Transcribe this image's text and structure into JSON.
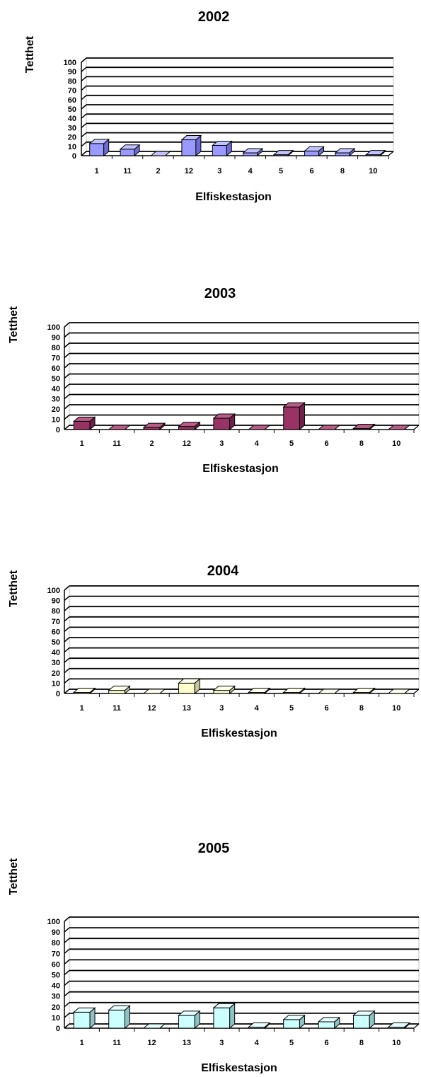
{
  "chart_data": [
    {
      "type": "bar",
      "title": "2002",
      "xlabel": "Elfiskestasjon",
      "ylabel": "Tetthet",
      "ylim": [
        0,
        100
      ],
      "yticks": [
        0,
        10,
        20,
        30,
        40,
        50,
        60,
        70,
        80,
        90,
        100
      ],
      "categories": [
        "1",
        "11",
        "2",
        "12",
        "3",
        "4",
        "5",
        "6",
        "8",
        "10"
      ],
      "values": [
        13,
        7,
        0,
        17,
        11,
        3,
        1,
        5,
        3,
        1
      ],
      "grid": true,
      "colors": {
        "face": "#9999ff",
        "side": "#6b6bd6",
        "top": "#c2c2ff"
      }
    },
    {
      "type": "bar",
      "title": "2003",
      "xlabel": "Elfiskestasjon",
      "ylabel": "Tetthet",
      "ylim": [
        0,
        100
      ],
      "yticks": [
        0,
        10,
        20,
        30,
        40,
        50,
        60,
        70,
        80,
        90,
        100
      ],
      "categories": [
        "1",
        "11",
        "2",
        "12",
        "3",
        "4",
        "5",
        "6",
        "8",
        "10"
      ],
      "values": [
        8,
        0,
        2,
        3,
        11,
        0,
        22,
        0,
        1,
        0
      ],
      "grid": true,
      "colors": {
        "face": "#993366",
        "side": "#6e2249",
        "top": "#b85c88"
      }
    },
    {
      "type": "bar",
      "title": "2004",
      "xlabel": "Elfiskestasjon",
      "ylabel": "Tetthet",
      "ylim": [
        0,
        100
      ],
      "yticks": [
        0,
        10,
        20,
        30,
        40,
        50,
        60,
        70,
        80,
        90,
        100
      ],
      "categories": [
        "1",
        "11",
        "12",
        "13",
        "3",
        "4",
        "5",
        "6",
        "8",
        "10"
      ],
      "values": [
        1,
        3,
        0,
        10,
        3,
        1,
        1,
        0,
        1,
        0
      ],
      "grid": true,
      "colors": {
        "face": "#ffffcc",
        "side": "#c8c89a",
        "top": "#fffff0"
      }
    },
    {
      "type": "bar",
      "title": "2005",
      "xlabel": "Elfiskestasjon",
      "ylabel": "Tetthet",
      "ylim": [
        0,
        100
      ],
      "yticks": [
        0,
        10,
        20,
        30,
        40,
        50,
        60,
        70,
        80,
        90,
        100
      ],
      "categories": [
        "1",
        "11",
        "12",
        "13",
        "3",
        "4",
        "5",
        "6",
        "8",
        "10"
      ],
      "values": [
        15,
        17,
        0,
        12,
        19,
        1,
        8,
        6,
        12,
        1
      ],
      "grid": true,
      "colors": {
        "face": "#ccffff",
        "side": "#8fc2c2",
        "top": "#e8ffff"
      }
    }
  ]
}
